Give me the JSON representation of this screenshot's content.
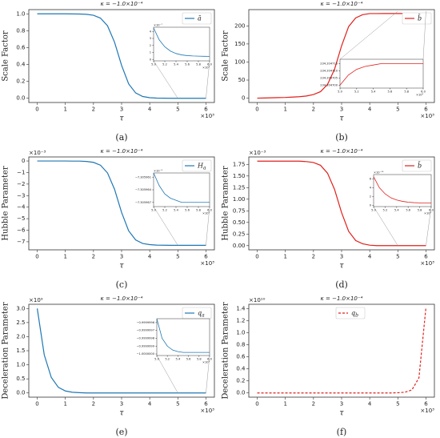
{
  "chart_data": [
    {
      "type": "line",
      "title": "κ = −1.0×10⁻⁴",
      "panel_label": "(a)",
      "y_label": "Scale Factor",
      "x_label": "τ",
      "x_offset": "×10³",
      "legend": "upper right",
      "x": [
        0,
        0.25,
        0.5,
        0.75,
        1,
        1.25,
        1.5,
        1.75,
        2,
        2.25,
        2.5,
        2.75,
        3,
        3.25,
        3.5,
        3.75,
        4,
        4.25,
        4.5,
        4.75,
        5,
        5.25,
        5.5,
        5.75,
        6
      ],
      "series": [
        {
          "name": "ā",
          "color": "#1f77b4",
          "linestyle": "solid",
          "values": [
            1,
            1,
            1,
            1,
            1,
            0.999,
            0.998,
            0.994,
            0.983,
            0.949,
            0.858,
            0.663,
            0.389,
            0.171,
            0.063,
            0.021,
            0.007,
            0.002,
            0.001,
            0,
            0,
            0,
            0,
            0,
            0
          ]
        }
      ],
      "xlim": [
        -0.3,
        6.3
      ],
      "xticks": [
        0,
        1,
        2,
        3,
        4,
        5,
        6
      ],
      "ylim": [
        -0.05,
        1.05
      ],
      "yticks": [
        {
          "value": 0,
          "label": "0.0"
        },
        0.2,
        0.4,
        0.6,
        0.8,
        {
          "value": 1,
          "label": "1.0"
        }
      ],
      "inset": {
        "x": [
          5,
          5.1,
          5.2,
          5.3,
          5.4,
          5.5,
          5.6,
          5.7,
          5.8,
          5.9,
          6
        ],
        "values": [
          4.5,
          2.8,
          1.8,
          1.2,
          0.85,
          0.65,
          0.55,
          0.5,
          0.47,
          0.45,
          0.44
        ],
        "xlim": [
          5,
          6
        ],
        "ylim": [
          -0.2,
          4.6
        ],
        "xticks": [
          {
            "value": 5,
            "label": "5.0"
          },
          5.2,
          5.4,
          5.6,
          5.8,
          {
            "value": 6,
            "label": "6.0"
          }
        ],
        "yticks": [
          0,
          1,
          2,
          3,
          4
        ],
        "x_offset": "×10³",
        "y_offset": "×10⁻⁷"
      }
    },
    {
      "type": "line",
      "title": "κ = −1.0×10⁻⁴",
      "panel_label": "(b)",
      "y_label": "Scale Factor",
      "x_label": "τ",
      "x_offset": "×10³",
      "legend": "upper right",
      "x": [
        0,
        0.25,
        0.5,
        0.75,
        1,
        1.25,
        1.5,
        1.75,
        2,
        2.25,
        2.5,
        2.75,
        3,
        3.25,
        3.5,
        3.75,
        4,
        4.25,
        4.5,
        4.75,
        5,
        5.25,
        5.5,
        5.75,
        6
      ],
      "series": [
        {
          "name": "b̄",
          "color": "#e0201b",
          "linestyle": "solid",
          "values": [
            0,
            0.5,
            1,
            1.5,
            2,
            3,
            4,
            6,
            10,
            18,
            38,
            80,
            145,
            198,
            222,
            231,
            234,
            234.1,
            234.2,
            234.2,
            234.2,
            234.2,
            234.2,
            234.2,
            234.2
          ]
        }
      ],
      "xlim": [
        -0.3,
        6.3
      ],
      "xticks": [
        0,
        1,
        2,
        3,
        4,
        5,
        6
      ],
      "ylim": [
        -12,
        245
      ],
      "yticks": [
        0,
        50,
        100,
        150,
        200
      ],
      "inset": {
        "x": [
          5,
          5.1,
          5.2,
          5.3,
          5.4,
          5.5,
          5.6,
          5.7,
          5.8,
          5.9,
          6
        ],
        "values": [
          234.2047,
          234.204707,
          234.204711,
          234.204713,
          234.204714,
          234.204715,
          234.204715,
          234.204715,
          234.204715,
          234.204715,
          234.204715
        ],
        "xlim": [
          5,
          6
        ],
        "ylim": [
          234.204698,
          234.204718
        ],
        "xticks": [
          {
            "value": 5,
            "label": "5.0"
          },
          5.2,
          5.4,
          5.6,
          5.8,
          {
            "value": 6,
            "label": "6.0"
          }
        ],
        "yticks": [
          {
            "value": 234.2047,
            "label": "234.204700"
          },
          234.204705,
          {
            "value": 234.20471,
            "label": "234.204710"
          },
          234.204715
        ],
        "x_offset": "×10³"
      }
    },
    {
      "type": "line",
      "title": "κ = −1.0×10⁻⁴",
      "panel_label": "(c)",
      "y_label": "Hubble Parameter",
      "x_label": "τ",
      "x_offset": "×10³",
      "y_offset": "×10⁻³",
      "legend": "upper right",
      "x": [
        0,
        0.25,
        0.5,
        0.75,
        1,
        1.25,
        1.5,
        1.75,
        2,
        2.25,
        2.5,
        2.75,
        3,
        3.25,
        3.5,
        3.75,
        4,
        4.25,
        4.5,
        4.75,
        5,
        5.25,
        5.5,
        5.75,
        6
      ],
      "series": [
        {
          "name": "Ha",
          "color": "#1f77b4",
          "linestyle": "solid",
          "values": [
            0,
            0,
            0,
            0,
            0,
            -0.01,
            -0.01,
            -0.04,
            -0.12,
            -0.37,
            -1.04,
            -2.46,
            -4.46,
            -6.05,
            -6.84,
            -7.15,
            -7.25,
            -7.29,
            -7.3,
            -7.31,
            -7.31,
            -7.31,
            -7.31,
            -7.31,
            -7.31
          ]
        }
      ],
      "xlim": [
        -0.3,
        6.3
      ],
      "xticks": [
        0,
        1,
        2,
        3,
        4,
        5,
        6
      ],
      "ylim": [
        -7.7,
        0.35
      ],
      "yticks": [
        0,
        {
          "value": -1,
          "label": "−1"
        },
        {
          "value": -2,
          "label": "−2"
        },
        {
          "value": -3,
          "label": "−3"
        },
        {
          "value": -4,
          "label": "−4"
        },
        {
          "value": -5,
          "label": "−5"
        },
        {
          "value": -6,
          "label": "−6"
        },
        {
          "value": -7,
          "label": "−7"
        }
      ],
      "inset": {
        "x": [
          5,
          5.1,
          5.2,
          5.3,
          5.4,
          5.5,
          5.6,
          5.7,
          5.8,
          5.9,
          6
        ],
        "values": [
          -7.30596,
          -7.305963,
          -7.305965,
          -7.305966,
          -7.3059665,
          -7.305967,
          -7.305967,
          -7.305967,
          -7.305967,
          -7.305967,
          -7.305967
        ],
        "xlim": [
          5,
          6
        ],
        "ylim": [
          -7.305968,
          -7.30596
        ],
        "xticks": [
          {
            "value": 5,
            "label": "5.0"
          },
          5.2,
          5.4,
          5.6,
          5.8,
          {
            "value": 6,
            "label": "6.0"
          }
        ],
        "yticks": [
          {
            "value": -7.305961,
            "label": "−7.305961"
          },
          {
            "value": -7.305964,
            "label": "−7.305964"
          },
          {
            "value": -7.305967,
            "label": "−7.305967"
          }
        ],
        "x_offset": "×10³",
        "y_offset": "×10⁻³"
      }
    },
    {
      "type": "line",
      "title": "κ = −1.0×10⁻⁴",
      "panel_label": "(d)",
      "y_label": "Hubble Parameter",
      "x_label": "τ",
      "x_offset": "×10³",
      "y_offset": "×10⁻³",
      "legend": "upper right",
      "x": [
        0,
        0.25,
        0.5,
        0.75,
        1,
        1.25,
        1.5,
        1.75,
        2,
        2.25,
        2.5,
        2.75,
        3,
        3.25,
        3.5,
        3.75,
        4,
        4.25,
        4.5,
        4.75,
        5,
        5.25,
        5.5,
        5.75,
        6
      ],
      "series": [
        {
          "name": "b̄",
          "color": "#e0201b",
          "linestyle": "solid",
          "values": [
            1.82,
            1.82,
            1.82,
            1.82,
            1.82,
            1.82,
            1.82,
            1.81,
            1.79,
            1.73,
            1.56,
            1.21,
            0.71,
            0.31,
            0.11,
            0.04,
            0.01,
            0,
            0,
            0,
            0,
            0,
            0,
            0,
            0
          ]
        }
      ],
      "xlim": [
        -0.3,
        6.3
      ],
      "xticks": [
        0,
        1,
        2,
        3,
        4,
        5,
        6
      ],
      "ylim": [
        -0.09,
        1.91
      ],
      "yticks": [
        {
          "value": 0,
          "label": "0.00"
        },
        0.25,
        {
          "value": 0.5,
          "label": "0.50"
        },
        0.75,
        {
          "value": 1,
          "label": "1.00"
        },
        1.25,
        {
          "value": 1.5,
          "label": "1.50"
        },
        1.75
      ],
      "inset": {
        "x": [
          5,
          5.1,
          5.2,
          5.3,
          5.4,
          5.5,
          5.6,
          5.7,
          5.8,
          5.9,
          6
        ],
        "values": [
          6.5,
          4,
          2.6,
          1.7,
          1.2,
          0.9,
          0.7,
          0.6,
          0.55,
          0.5,
          0.5
        ],
        "xlim": [
          5,
          6
        ],
        "ylim": [
          -0.3,
          7
        ],
        "xticks": [
          {
            "value": 5,
            "label": "5.0"
          },
          5.2,
          5.4,
          5.6,
          5.8,
          {
            "value": 6,
            "label": "6.0"
          }
        ],
        "yticks": [
          0,
          2,
          4,
          6
        ],
        "x_offset": "×10³",
        "y_offset": "×10⁻¹⁰"
      }
    },
    {
      "type": "line",
      "title": "κ = −1.0×10⁻⁴",
      "panel_label": "(e)",
      "y_label": "Deceleration Parameter",
      "x_label": "τ",
      "x_offset": "×10³",
      "y_offset": "×10⁹",
      "legend": "upper right",
      "x": [
        0,
        0.25,
        0.5,
        0.75,
        1,
        1.25,
        1.5,
        1.75,
        2,
        2.25,
        2.5,
        2.75,
        3,
        3.25,
        3.5,
        3.75,
        4,
        4.25,
        4.5,
        4.75,
        5,
        5.25,
        5.5,
        5.75,
        6
      ],
      "series": [
        {
          "name": "qa",
          "color": "#1f77b4",
          "linestyle": "solid",
          "values": [
            3,
            1.35,
            0.55,
            0.2,
            0.07,
            0.025,
            0.01,
            0,
            0,
            0,
            0,
            0,
            0,
            0,
            0,
            0,
            0,
            0,
            0,
            0,
            0,
            0,
            0,
            0,
            0
          ]
        }
      ],
      "xlim": [
        -0.3,
        6.3
      ],
      "xticks": [
        0,
        1,
        2,
        3,
        4,
        5,
        6
      ],
      "ylim": [
        -0.15,
        3.15
      ],
      "yticks": [
        {
          "value": 0,
          "label": "0.0"
        },
        0.5,
        {
          "value": 1,
          "label": "1.0"
        },
        1.5,
        {
          "value": 2,
          "label": "2.0"
        },
        2.5,
        {
          "value": 3,
          "label": "3.0"
        }
      ],
      "inset": {
        "x": [
          5,
          5.1,
          5.2,
          5.3,
          5.4,
          5.5,
          5.6,
          5.7,
          5.8,
          5.9,
          6
        ],
        "values": [
          -0.99999955,
          -0.9999998,
          -0.9999999,
          -0.99999995,
          -0.99999997,
          -0.99999998,
          -0.99999998,
          -0.99999998,
          -0.99999998,
          -0.99999998,
          -0.99999998
        ],
        "xlim": [
          5,
          6
        ],
        "ylim": [
          -1.00000002,
          -0.99999955
        ],
        "xticks": [
          {
            "value": 5,
            "label": "5.0"
          },
          5.2,
          5.4,
          5.6,
          5.8,
          {
            "value": 6,
            "label": "6.0"
          }
        ],
        "yticks": [
          {
            "value": -0.9999996,
            "label": "−0.9999996"
          },
          {
            "value": -0.9999997,
            "label": "−0.9999997"
          },
          {
            "value": -0.9999998,
            "label": "−0.9999998"
          },
          {
            "value": -0.9999999,
            "label": "−0.9999999"
          },
          {
            "value": -1,
            "label": "−1.0000000"
          }
        ],
        "x_offset": "×10³"
      }
    },
    {
      "type": "line",
      "title": "κ = −1.0×10⁻⁴",
      "panel_label": "(f)",
      "y_label": "Deceleration Parameter",
      "x_label": "τ",
      "x_offset": "×10³",
      "y_offset": "×10¹⁰",
      "legend": "upper center",
      "x": [
        0,
        0.25,
        0.5,
        0.75,
        1,
        1.25,
        1.5,
        1.75,
        2,
        2.25,
        2.5,
        2.75,
        3,
        3.25,
        3.5,
        3.75,
        4,
        4.25,
        4.5,
        4.75,
        5,
        5.25,
        5.5,
        5.75,
        6
      ],
      "series": [
        {
          "name": "qb",
          "color": "#e0201b",
          "linestyle": "dashed",
          "values": [
            0,
            0,
            0,
            0,
            0,
            0,
            0,
            0,
            0,
            0,
            0,
            0,
            0,
            0,
            0,
            0,
            0,
            0,
            0,
            0,
            0.003,
            0.012,
            0.05,
            0.25,
            1.42
          ]
        }
      ],
      "xlim": [
        -0.3,
        6.3
      ],
      "xticks": [
        0,
        1,
        2,
        3,
        4,
        5,
        6
      ],
      "ylim": [
        -0.07,
        1.47
      ],
      "yticks": [
        {
          "value": 0,
          "label": "0.0"
        },
        0.2,
        0.4,
        0.6,
        0.8,
        {
          "value": 1,
          "label": "1.0"
        },
        1.2,
        1.4
      ]
    }
  ]
}
